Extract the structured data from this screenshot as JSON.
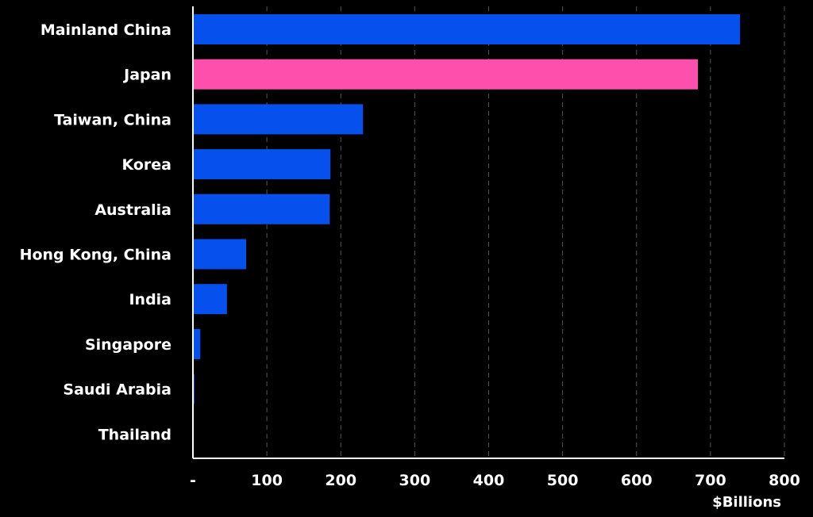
{
  "chart_data": {
    "type": "bar",
    "orientation": "horizontal",
    "categories": [
      "Mainland China",
      "Japan",
      "Taiwan, China",
      "Korea",
      "Australia",
      "Hong Kong, China",
      "India",
      "Singapore",
      "Saudi Arabia",
      "Thailand"
    ],
    "values": [
      740,
      683,
      230,
      186,
      185,
      72,
      46,
      10,
      2,
      0
    ],
    "bar_colors": [
      "#0650ee",
      "#ff4fad",
      "#0650ee",
      "#0650ee",
      "#0650ee",
      "#0650ee",
      "#0650ee",
      "#0650ee",
      "#0650ee",
      "#0650ee"
    ],
    "xlim": [
      0,
      800
    ],
    "xticks": [
      0,
      100,
      200,
      300,
      400,
      500,
      600,
      700,
      800
    ],
    "xtick_labels": [
      "-",
      "100",
      "200",
      "300",
      "400",
      "500",
      "600",
      "700",
      "800"
    ],
    "xlabel": "$Billions",
    "title": "",
    "grid": "vertical dashed",
    "background": "#000000",
    "text_color": "#ffffff",
    "grid_color": "#555555"
  }
}
